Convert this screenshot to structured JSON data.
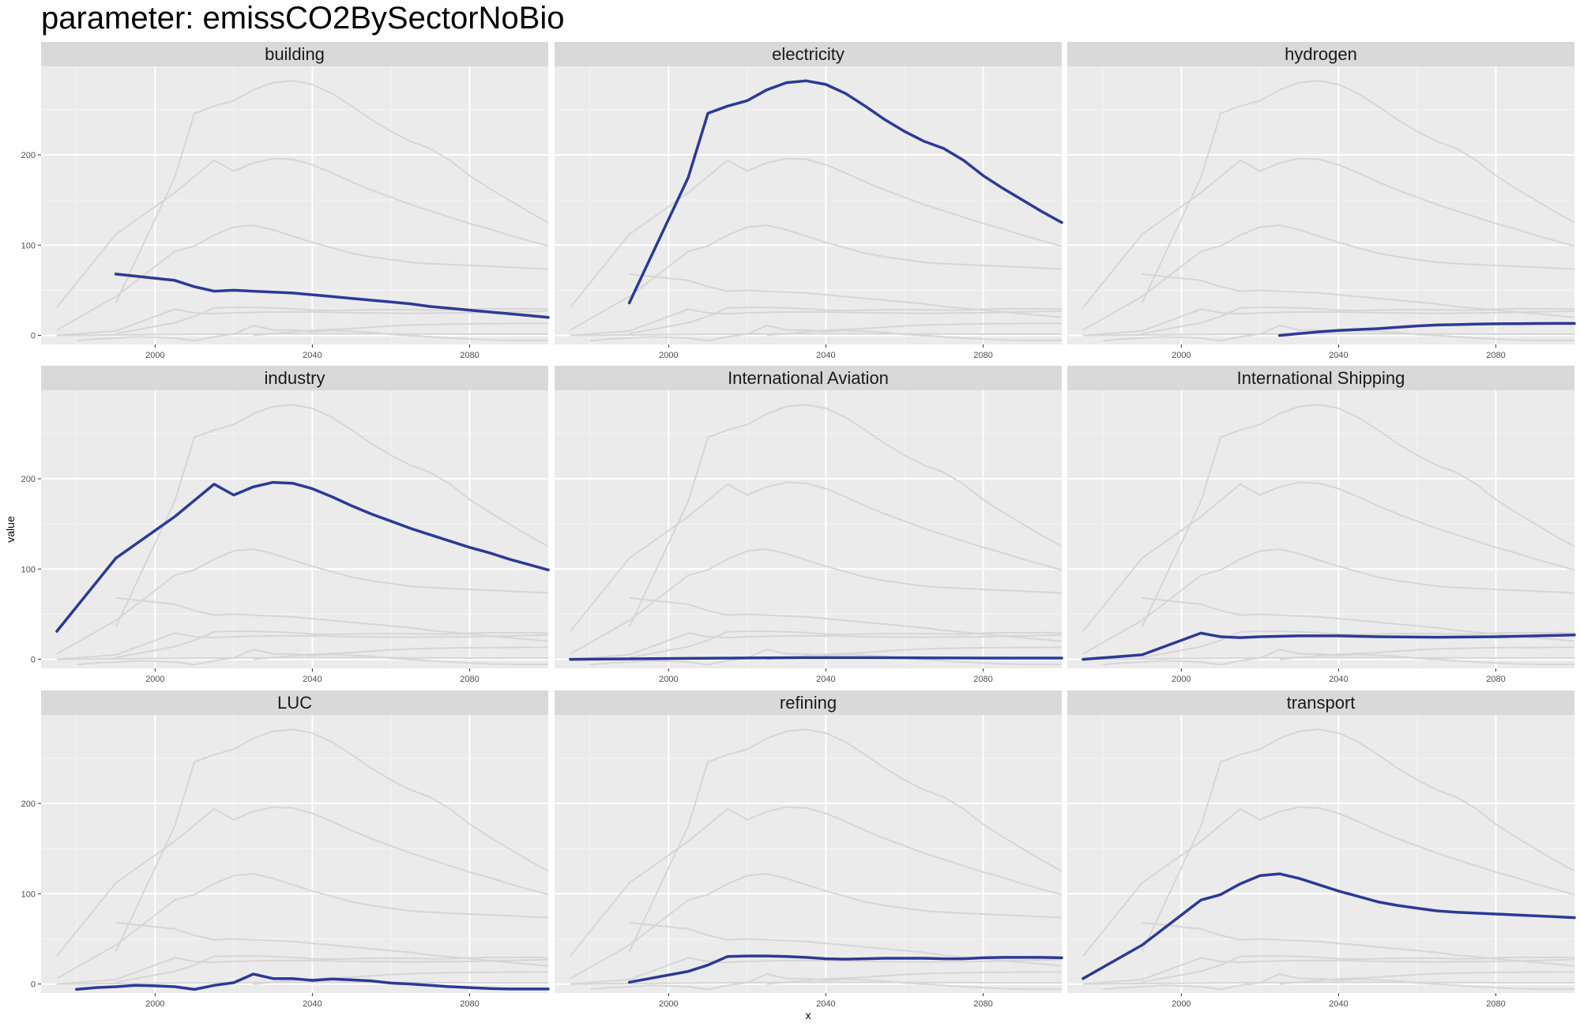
{
  "title": "parameter: emissCO2BySectorNoBio",
  "chart_data": {
    "type": "line",
    "layout": "facet-grid-3x3",
    "xlabel": "x",
    "ylabel": "value",
    "xlim": [
      1971,
      2100
    ],
    "ylim": [
      -10,
      298
    ],
    "x_ticks": [
      2000,
      2040,
      2080
    ],
    "y_ticks": [
      0,
      100,
      200
    ],
    "highlight_color": "#2b3a96",
    "background_color": "#cfcfcf",
    "panel_color": "#ebebeb",
    "strip_color": "#d9d9d9",
    "grid": true,
    "panels": [
      {
        "name": "building",
        "x": [
          1990,
          2005,
          2010,
          2015,
          2020,
          2025,
          2030,
          2035,
          2040,
          2045,
          2050,
          2055,
          2060,
          2065,
          2070,
          2075,
          2080,
          2085,
          2090,
          2095,
          2100
        ],
        "y": [
          68,
          61,
          54,
          49,
          50,
          49,
          48,
          47,
          45,
          43,
          41,
          39,
          37,
          35,
          32,
          30,
          28,
          26,
          24,
          22,
          20
        ]
      },
      {
        "name": "electricity",
        "x": [
          1990,
          2005,
          2010,
          2015,
          2020,
          2025,
          2030,
          2035,
          2040,
          2045,
          2050,
          2055,
          2060,
          2065,
          2070,
          2075,
          2080,
          2085,
          2090,
          2095,
          2100
        ],
        "y": [
          36,
          175,
          246,
          254,
          260,
          272,
          280,
          282,
          278,
          268,
          254,
          239,
          226,
          215,
          207,
          194,
          177,
          163,
          150,
          137,
          125
        ]
      },
      {
        "name": "hydrogen",
        "x": [
          2025,
          2030,
          2035,
          2040,
          2045,
          2050,
          2055,
          2060,
          2065,
          2070,
          2075,
          2080,
          2085,
          2090,
          2095,
          2100
        ],
        "y": [
          0,
          2,
          4,
          5.5,
          6.5,
          7.5,
          9,
          10.5,
          11.5,
          12,
          12.5,
          12.8,
          13,
          13.2,
          13.3,
          13.3
        ]
      },
      {
        "name": "industry",
        "x": [
          1975,
          1990,
          2005,
          2015,
          2020,
          2025,
          2030,
          2035,
          2040,
          2045,
          2050,
          2055,
          2060,
          2065,
          2070,
          2075,
          2080,
          2085,
          2090,
          2095,
          2100
        ],
        "y": [
          31,
          112,
          158,
          194,
          182,
          191,
          196,
          195,
          189,
          180,
          170,
          161,
          153,
          145,
          138,
          131,
          124,
          118,
          111,
          105,
          99
        ]
      },
      {
        "name": "International Aviation",
        "x": [
          1975,
          1990,
          2005,
          2020,
          2035,
          2050,
          2065,
          2080,
          2100
        ],
        "y": [
          0,
          0.5,
          1,
          1.5,
          1.8,
          1.8,
          1.6,
          1.4,
          1.4
        ]
      },
      {
        "name": "International Shipping",
        "x": [
          1975,
          1990,
          2005,
          2010,
          2015,
          2020,
          2030,
          2040,
          2050,
          2065,
          2080,
          2100
        ],
        "y": [
          0,
          5,
          29,
          25,
          24,
          25,
          26,
          26,
          25,
          24.5,
          25,
          27
        ]
      },
      {
        "name": "LUC",
        "x": [
          1980,
          1985,
          1990,
          1995,
          2000,
          2005,
          2010,
          2015,
          2020,
          2025,
          2030,
          2035,
          2040,
          2045,
          2050,
          2055,
          2060,
          2065,
          2070,
          2075,
          2080,
          2085,
          2090,
          2095,
          2100
        ],
        "y": [
          -6,
          -4,
          -3,
          -1.5,
          -2,
          -3,
          -6,
          -1.5,
          1.5,
          11,
          6,
          6,
          4,
          5.5,
          4.5,
          3.5,
          1,
          0,
          -1.5,
          -3,
          -4,
          -5,
          -5.5,
          -5.5,
          -5.5
        ]
      },
      {
        "name": "refining",
        "x": [
          1990,
          2005,
          2010,
          2015,
          2020,
          2025,
          2030,
          2035,
          2040,
          2045,
          2050,
          2055,
          2060,
          2065,
          2070,
          2075,
          2080,
          2085,
          2090,
          2095,
          2100
        ],
        "y": [
          2,
          14,
          21,
          30.5,
          31,
          31,
          30.5,
          29.5,
          28,
          27.5,
          28,
          28.5,
          28.5,
          28.5,
          28,
          28,
          29,
          29.5,
          29.5,
          29.5,
          29
        ]
      },
      {
        "name": "transport",
        "x": [
          1975,
          1990,
          2005,
          2010,
          2015,
          2020,
          2025,
          2030,
          2035,
          2040,
          2045,
          2050,
          2055,
          2060,
          2065,
          2070,
          2075,
          2080,
          2085,
          2090,
          2095,
          2100
        ],
        "y": [
          6,
          43,
          93,
          99,
          111,
          120,
          122,
          117,
          110,
          103,
          97,
          91,
          87,
          84,
          81,
          79.5,
          78.5,
          77.5,
          76.5,
          75.5,
          74.5,
          73.5
        ]
      }
    ]
  }
}
